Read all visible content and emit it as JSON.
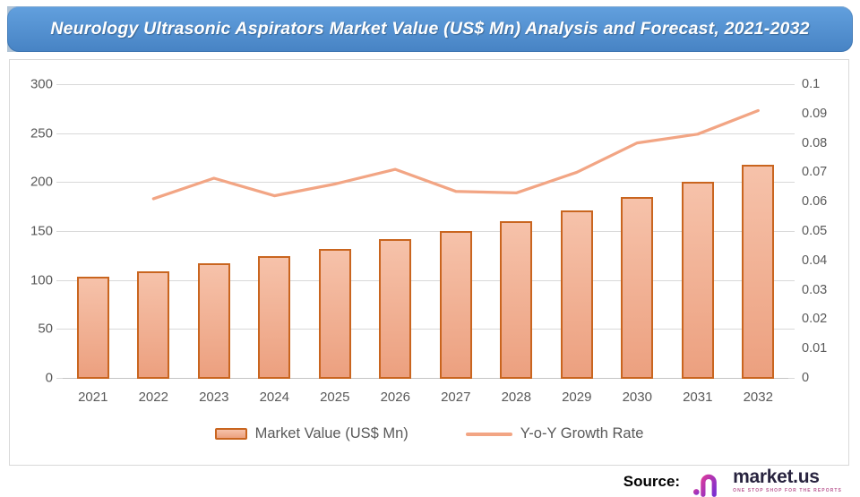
{
  "title": {
    "text": "Neurology Ultrasonic Aspirators Market Value (US$ Mn) Analysis and Forecast, 2021-2032"
  },
  "chart_data": {
    "type": "bar",
    "subtype": "combo-bar-line-dual-axis",
    "title": "Neurology Ultrasonic Aspirators Market Value (US$ Mn) Analysis and Forecast, 2021-2032",
    "categories": [
      "2021",
      "2022",
      "2023",
      "2024",
      "2025",
      "2026",
      "2027",
      "2028",
      "2029",
      "2030",
      "2031",
      "2032"
    ],
    "series": [
      {
        "name": "Market Value (US$ Mn)",
        "type": "bar",
        "axis": "left",
        "values": [
          103,
          109,
          117,
          124,
          132,
          142,
          150,
          160,
          171,
          185,
          200,
          218
        ]
      },
      {
        "name": "Y-o-Y Growth Rate",
        "type": "line",
        "axis": "right",
        "values": [
          null,
          0.061,
          0.068,
          0.062,
          0.066,
          0.071,
          0.0635,
          0.063,
          0.07,
          0.08,
          0.083,
          0.091
        ]
      }
    ],
    "left_axis": {
      "min": 0,
      "max": 300,
      "tick_values": [
        0,
        50,
        100,
        150,
        200,
        250,
        300
      ],
      "tick_labels": [
        "0",
        "50",
        "100",
        "150",
        "200",
        "250",
        "300"
      ]
    },
    "right_axis": {
      "min": 0,
      "max": 0.1,
      "tick_labels": [
        "0",
        "0.01",
        "0.02",
        "0.03",
        "0.04",
        "0.05",
        "0.06",
        "0.07",
        "0.08",
        "0.09",
        "0.1"
      ]
    },
    "grid": true,
    "legend_position": "bottom"
  },
  "legend": {
    "bar_label": "Market Value (US$ Mn)",
    "line_label": "Y-o-Y Growth Rate"
  },
  "source": {
    "label": "Source:",
    "brand": "market.us",
    "tagline": "ONE STOP SHOP FOR THE REPORTS"
  },
  "colors": {
    "title_bg_top": "#62a0de",
    "title_bg_bottom": "#4783c4",
    "title_text": "#ffffff",
    "bar_fill_top": "#f6c2aa",
    "bar_fill_bottom": "#eca07f",
    "bar_border": "#c9651f",
    "line": "#f2a584",
    "grid": "#d9d9d9",
    "axis_text": "#595959"
  }
}
